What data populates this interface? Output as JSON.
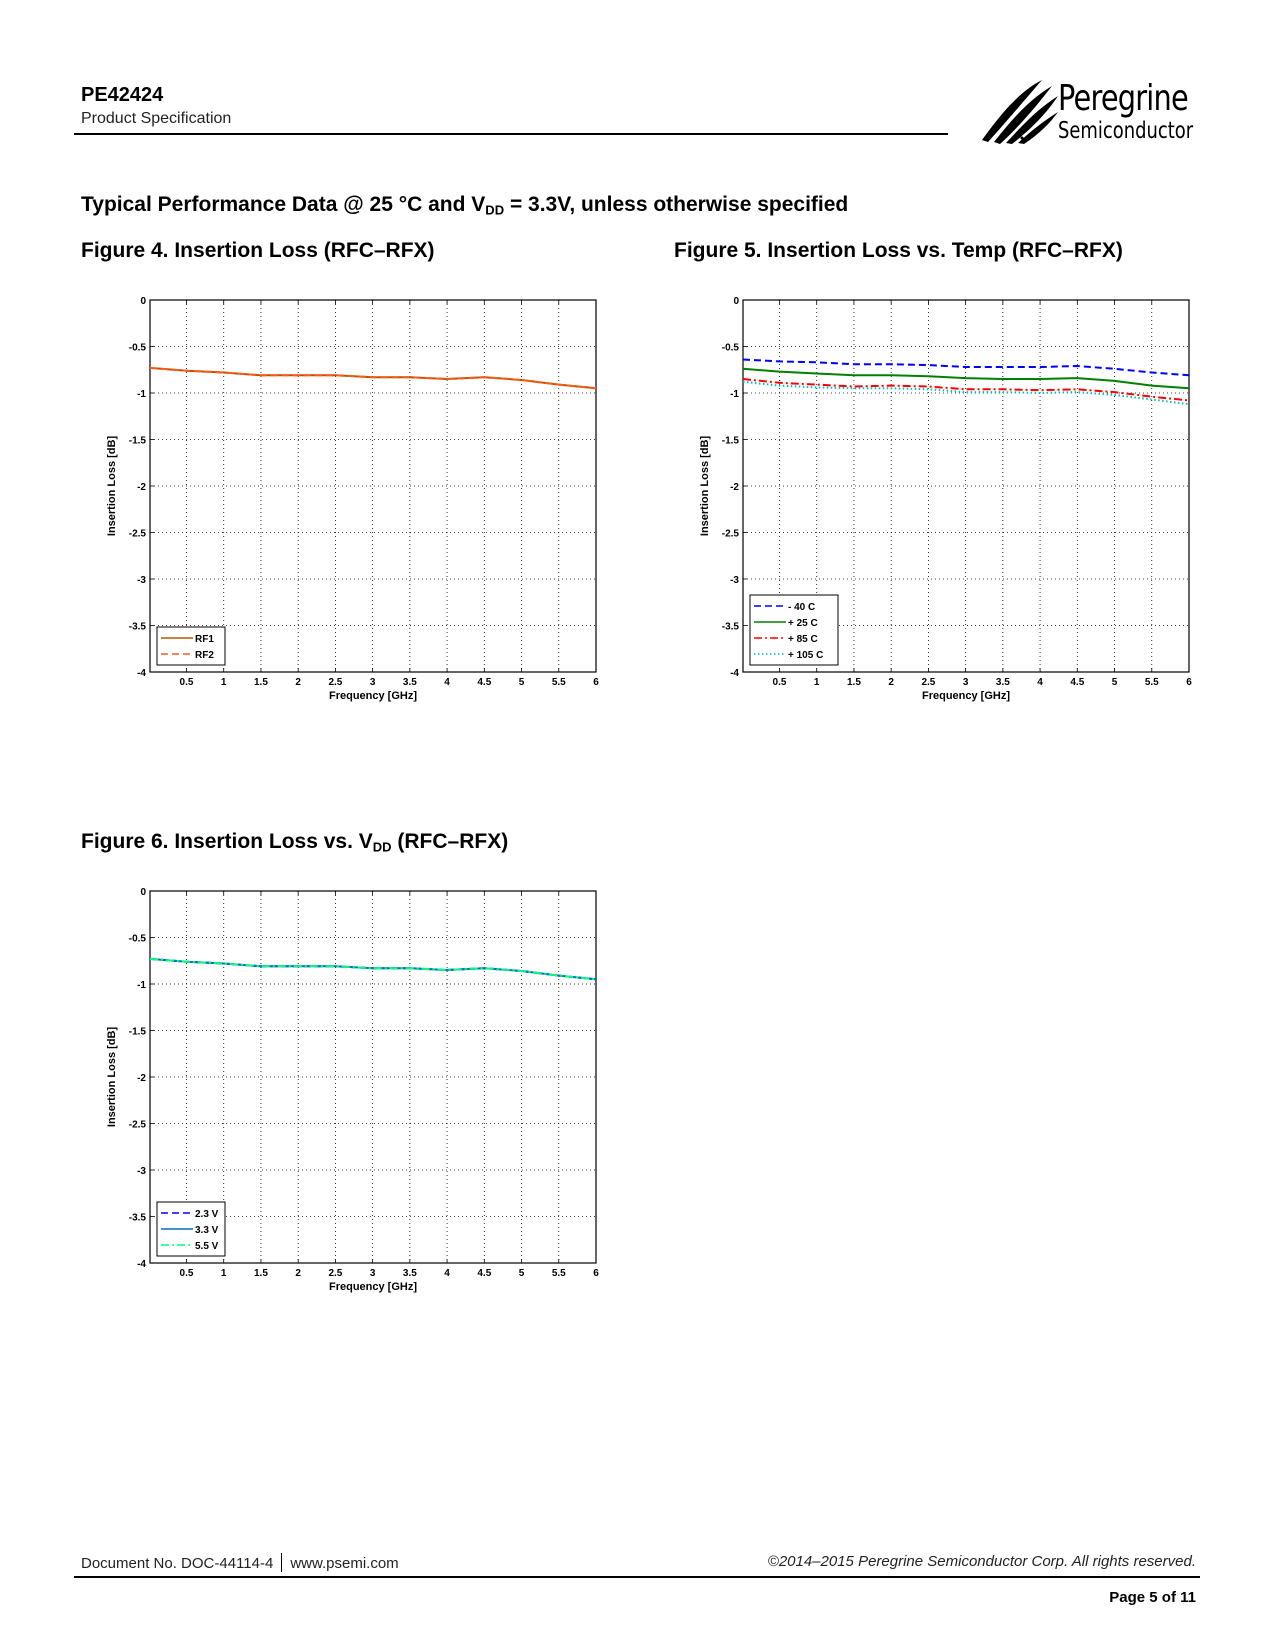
{
  "header": {
    "part_number": "PE42424",
    "doc_type": "Product Specification",
    "logo": {
      "line1": "Peregrine",
      "line2": "Semiconductor",
      "icon": "peregrine-claw-logo-icon"
    }
  },
  "section_title": {
    "pre": "Typical Performance Data @ 25 °C and V",
    "sub": "DD",
    "post": " = 3.3V, unless otherwise specified"
  },
  "figures": [
    {
      "title": "Figure 4.  Insertion Loss (RFC–RFX)"
    },
    {
      "title": "Figure 5.  Insertion Loss vs. Temp (RFC–RFX)"
    },
    {
      "title_pre": "Figure 6.  Insertion Loss vs. V",
      "title_sub": "DD",
      "title_post": " (RFC–RFX)"
    }
  ],
  "chart_data": [
    {
      "type": "line",
      "title": "Figure 4. Insertion Loss (RFC–RFX)",
      "xlabel": "Frequency [GHz]",
      "ylabel": "Insertion Loss [dB]",
      "xlim": [
        0.01,
        6
      ],
      "ylim": [
        -4,
        0
      ],
      "xticks": [
        "0.5",
        "1",
        "1.5",
        "2",
        "2.5",
        "3",
        "3.5",
        "4",
        "4.5",
        "5",
        "5.5",
        "6"
      ],
      "yticks": [
        "0",
        "-0.5",
        "-1",
        "-1.5",
        "-2",
        "-2.5",
        "-3",
        "-3.5",
        "-4"
      ],
      "grid": true,
      "legend_position": "lower left",
      "x": [
        0.01,
        0.5,
        1,
        1.5,
        2,
        2.5,
        3,
        3.5,
        4,
        4.5,
        5,
        5.5,
        6
      ],
      "series": [
        {
          "name": "RF1",
          "color": "#b35900",
          "style": "solid",
          "values": [
            -0.73,
            -0.76,
            -0.78,
            -0.81,
            -0.81,
            -0.81,
            -0.83,
            -0.83,
            -0.85,
            -0.83,
            -0.86,
            -0.91,
            -0.95
          ]
        },
        {
          "name": "RF2",
          "color": "#ff5a1f",
          "style": "dashed",
          "values": [
            -0.73,
            -0.76,
            -0.78,
            -0.81,
            -0.81,
            -0.81,
            -0.83,
            -0.83,
            -0.85,
            -0.83,
            -0.86,
            -0.91,
            -0.95
          ]
        }
      ]
    },
    {
      "type": "line",
      "title": "Figure 5. Insertion Loss vs. Temp (RFC–RFX)",
      "xlabel": "Frequency [GHz]",
      "ylabel": "Insertion Loss [dB]",
      "xlim": [
        0.01,
        6
      ],
      "ylim": [
        -4,
        0
      ],
      "xticks": [
        "0.5",
        "1",
        "1.5",
        "2",
        "2.5",
        "3",
        "3.5",
        "4",
        "4.5",
        "5",
        "5.5",
        "6"
      ],
      "yticks": [
        "0",
        "-0.5",
        "-1",
        "-1.5",
        "-2",
        "-2.5",
        "-3",
        "-3.5",
        "-4"
      ],
      "grid": true,
      "legend_position": "lower left",
      "x": [
        0.01,
        0.5,
        1,
        1.5,
        2,
        2.5,
        3,
        3.5,
        4,
        4.5,
        5,
        5.5,
        6
      ],
      "series": [
        {
          "name": "- 40 C",
          "color": "#0000ff",
          "style": "dashed",
          "values": [
            -0.64,
            -0.66,
            -0.67,
            -0.69,
            -0.69,
            -0.7,
            -0.72,
            -0.72,
            -0.72,
            -0.71,
            -0.74,
            -0.78,
            -0.81
          ]
        },
        {
          "name": "+ 25 C",
          "color": "#008000",
          "style": "solid",
          "values": [
            -0.74,
            -0.77,
            -0.79,
            -0.81,
            -0.81,
            -0.82,
            -0.84,
            -0.85,
            -0.85,
            -0.84,
            -0.87,
            -0.92,
            -0.95
          ]
        },
        {
          "name": "+ 85 C",
          "color": "#ff0000",
          "style": "dashdot",
          "values": [
            -0.85,
            -0.89,
            -0.91,
            -0.93,
            -0.92,
            -0.93,
            -0.96,
            -0.96,
            -0.97,
            -0.96,
            -0.99,
            -1.04,
            -1.08
          ]
        },
        {
          "name": "+ 105 C",
          "color": "#00bfbf",
          "style": "dotted",
          "values": [
            -0.88,
            -0.92,
            -0.94,
            -0.95,
            -0.95,
            -0.96,
            -0.99,
            -0.99,
            -1.0,
            -0.99,
            -1.02,
            -1.07,
            -1.12
          ]
        }
      ]
    },
    {
      "type": "line",
      "title": "Figure 6. Insertion Loss vs. VDD (RFC–RFX)",
      "xlabel": "Frequency [GHz]",
      "ylabel": "Insertion Loss [dB]",
      "xlim": [
        0.01,
        6
      ],
      "ylim": [
        -4,
        0
      ],
      "xticks": [
        "0.5",
        "1",
        "1.5",
        "2",
        "2.5",
        "3",
        "3.5",
        "4",
        "4.5",
        "5",
        "5.5",
        "6"
      ],
      "yticks": [
        "0",
        "-0.5",
        "-1",
        "-1.5",
        "-2",
        "-2.5",
        "-3",
        "-3.5",
        "-4"
      ],
      "grid": true,
      "legend_position": "lower left",
      "x": [
        0.01,
        0.5,
        1,
        1.5,
        2,
        2.5,
        3,
        3.5,
        4,
        4.5,
        5,
        5.5,
        6
      ],
      "series": [
        {
          "name": "2.3 V",
          "color": "#0000ff",
          "style": "dashed",
          "values": [
            -0.73,
            -0.76,
            -0.78,
            -0.81,
            -0.81,
            -0.81,
            -0.83,
            -0.83,
            -0.85,
            -0.83,
            -0.86,
            -0.91,
            -0.95
          ]
        },
        {
          "name": "3.3 V",
          "color": "#0072bd",
          "style": "solid",
          "values": [
            -0.73,
            -0.76,
            -0.78,
            -0.81,
            -0.81,
            -0.81,
            -0.83,
            -0.83,
            -0.85,
            -0.83,
            -0.86,
            -0.91,
            -0.95
          ]
        },
        {
          "name": "5.5 V",
          "color": "#00ff7f",
          "style": "dashdot",
          "values": [
            -0.73,
            -0.76,
            -0.78,
            -0.81,
            -0.81,
            -0.81,
            -0.83,
            -0.83,
            -0.85,
            -0.83,
            -0.86,
            -0.91,
            -0.95
          ]
        }
      ]
    }
  ],
  "footer": {
    "doc_no": "Document No. DOC-44114-4",
    "website": "www.psemi.com",
    "copyright": "©2014–2015 Peregrine Semiconductor Corp.  All rights reserved.",
    "page": "Page  5 of 11"
  }
}
